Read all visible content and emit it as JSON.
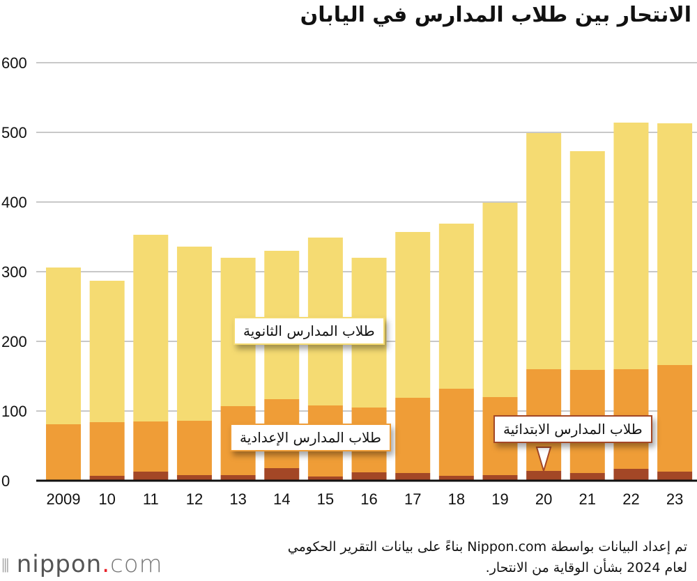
{
  "title": "الانتحار بين طلاب المدارس في اليابان",
  "chart_data": {
    "type": "bar",
    "stacked": true,
    "title": "الانتحار بين طلاب المدارس في اليابان",
    "categories": [
      "2009",
      "10",
      "11",
      "12",
      "13",
      "14",
      "15",
      "16",
      "17",
      "18",
      "19",
      "20",
      "21",
      "22",
      "23"
    ],
    "series": [
      {
        "name": "طلاب المدارس الابتدائية",
        "color": "#a34726",
        "values": [
          0,
          7,
          13,
          8,
          8,
          18,
          6,
          12,
          11,
          7,
          8,
          14,
          11,
          17,
          13
        ]
      },
      {
        "name": "طلاب المدارس الإعدادية",
        "color": "#ef9d37",
        "values": [
          81,
          77,
          72,
          78,
          99,
          99,
          102,
          93,
          108,
          125,
          112,
          146,
          148,
          143,
          153
        ]
      },
      {
        "name": "طلاب المدارس الثانوية",
        "color": "#f5db72",
        "values": [
          225,
          203,
          268,
          250,
          213,
          213,
          241,
          215,
          238,
          237,
          279,
          339,
          314,
          354,
          347
        ]
      }
    ],
    "ylim": [
      0,
      600
    ],
    "yticks": [
      0,
      100,
      200,
      300,
      400,
      500,
      600
    ],
    "grid": true,
    "xlabel": "",
    "ylabel": ""
  },
  "source": {
    "line1": "تم إعداد البيانات بواسطة Nippon.com بناءً على بيانات التقرير الحكومي",
    "line2": "لعام 2024 بشأن الوقاية من الانتحار."
  },
  "logo": {
    "text_main": "nippon",
    "text_dot": ".",
    "text_end": "com"
  }
}
